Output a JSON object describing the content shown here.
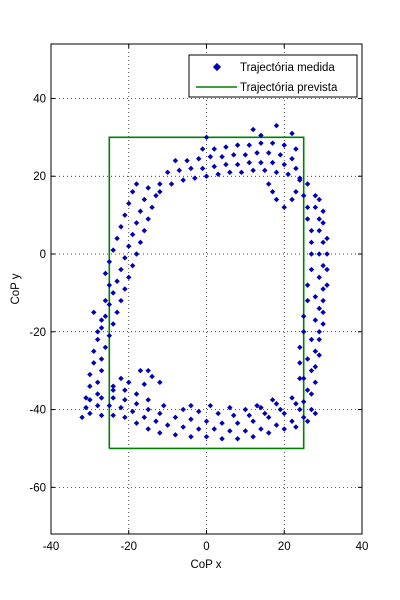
{
  "chart_data": {
    "type": "scatter",
    "xlabel": "CoP x",
    "ylabel": "CoP y",
    "xlim": [
      -40,
      40
    ],
    "ylim": [
      -72,
      54
    ],
    "xticks": [
      -40,
      -20,
      0,
      20,
      40
    ],
    "yticks": [
      -60,
      -40,
      -20,
      0,
      20,
      40
    ],
    "grid": true,
    "legend_position": "top-right",
    "series": [
      {
        "name": "Trajectória medida",
        "style": "markers",
        "color": "#0000b8",
        "marker": "diamond",
        "points": [
          [
            -32.0,
            -42.0
          ],
          [
            -30.0,
            -41.0
          ],
          [
            -27.0,
            -41.5
          ],
          [
            -24.0,
            -41.5
          ],
          [
            -21.0,
            -42.0
          ],
          [
            -18.0,
            -43.5
          ],
          [
            -15.0,
            -45.0
          ],
          [
            -12.0,
            -46.0
          ],
          [
            -8.0,
            -46.5
          ],
          [
            -4.0,
            -47.0
          ],
          [
            0.0,
            -47.0
          ],
          [
            4.0,
            -47.5
          ],
          [
            8.0,
            -47.5
          ],
          [
            12.0,
            -47.0
          ],
          [
            16.0,
            -46.0
          ],
          [
            20.0,
            -45.0
          ],
          [
            23.0,
            -44.5
          ],
          [
            26.0,
            -43.0
          ],
          [
            28.0,
            -41.0
          ],
          [
            -31.0,
            -39.5
          ],
          [
            -28.0,
            -39.0
          ],
          [
            -25.0,
            -39.0
          ],
          [
            -22.0,
            -39.5
          ],
          [
            -19.0,
            -40.5
          ],
          [
            -16.0,
            -42.0
          ],
          [
            -13.0,
            -43.0
          ],
          [
            -10.0,
            -44.0
          ],
          [
            -6.0,
            -44.5
          ],
          [
            -2.0,
            -45.0
          ],
          [
            2.0,
            -45.0
          ],
          [
            6.0,
            -45.5
          ],
          [
            10.0,
            -45.5
          ],
          [
            14.0,
            -45.0
          ],
          [
            18.0,
            -44.0
          ],
          [
            22.0,
            -43.0
          ],
          [
            25.0,
            -42.0
          ],
          [
            27.0,
            -40.0
          ],
          [
            -30.0,
            -37.5
          ],
          [
            -27.0,
            -37.0
          ],
          [
            -24.0,
            -37.0
          ],
          [
            -21.0,
            -37.5
          ],
          [
            -18.0,
            -38.5
          ],
          [
            -15.0,
            -40.0
          ],
          [
            -12.0,
            -41.0
          ],
          [
            -8.0,
            -42.0
          ],
          [
            -4.0,
            -42.5
          ],
          [
            0.0,
            -43.0
          ],
          [
            4.0,
            -43.5
          ],
          [
            8.0,
            -43.5
          ],
          [
            12.0,
            -43.0
          ],
          [
            16.0,
            -42.0
          ],
          [
            20.0,
            -41.0
          ],
          [
            24.0,
            -40.0
          ],
          [
            -28.0,
            -36.0
          ],
          [
            -24.0,
            -35.0
          ],
          [
            -21.0,
            -35.0
          ],
          [
            -18.0,
            -36.0
          ],
          [
            -15.0,
            -37.5
          ],
          [
            -11.0,
            -39.0
          ],
          [
            -6.0,
            -40.0
          ],
          [
            -2.0,
            -40.5
          ],
          [
            3.0,
            -41.0
          ],
          [
            7.0,
            -41.5
          ],
          [
            11.0,
            -41.5
          ],
          [
            15.0,
            -41.0
          ],
          [
            19.0,
            -40.0
          ],
          [
            23.0,
            -38.5
          ],
          [
            -22.0,
            -32.0
          ],
          [
            -20.0,
            -33.0
          ],
          [
            -17.0,
            -30.0
          ],
          [
            -15.0,
            -30.0
          ],
          [
            -14.0,
            -31.5
          ],
          [
            -16.0,
            -33.5
          ],
          [
            -12.0,
            -33.0
          ],
          [
            -24.0,
            -34.0
          ],
          [
            -4.0,
            -39.0
          ],
          [
            1.0,
            -39.0
          ],
          [
            6.0,
            -39.5
          ],
          [
            10.0,
            -40.0
          ],
          [
            14.0,
            -39.5
          ],
          [
            18.0,
            -38.5
          ],
          [
            22.0,
            -37.0
          ],
          [
            13.0,
            -39.0
          ],
          [
            17.0,
            -37.5
          ],
          [
            25.0,
            -38.0
          ],
          [
            26.0,
            -35.0
          ],
          [
            25.0,
            -32.0
          ],
          [
            27.0,
            -30.0
          ],
          [
            26.0,
            -27.0
          ],
          [
            28.0,
            -25.0
          ],
          [
            27.0,
            -22.0
          ],
          [
            29.0,
            -20.0
          ],
          [
            28.0,
            -17.0
          ],
          [
            29.0,
            -14.0
          ],
          [
            28.0,
            -11.0
          ],
          [
            30.0,
            -9.0
          ],
          [
            29.0,
            -6.0
          ],
          [
            30.0,
            -3.0
          ],
          [
            29.0,
            0.0
          ],
          [
            30.0,
            3.0
          ],
          [
            29.0,
            6.0
          ],
          [
            29.0,
            9.0
          ],
          [
            28.0,
            12.0
          ],
          [
            28.0,
            15.0
          ],
          [
            27.0,
            -36.0
          ],
          [
            28.0,
            -33.0
          ],
          [
            28.0,
            -29.0
          ],
          [
            29.0,
            -26.0
          ],
          [
            29.0,
            -22.0
          ],
          [
            30.0,
            -18.0
          ],
          [
            30.0,
            -15.0
          ],
          [
            30.0,
            -12.0
          ],
          [
            31.0,
            -8.0
          ],
          [
            31.0,
            -4.0
          ],
          [
            31.0,
            0.0
          ],
          [
            31.0,
            4.0
          ],
          [
            30.0,
            8.0
          ],
          [
            30.0,
            11.0
          ],
          [
            29.0,
            14.0
          ],
          [
            26.0,
            18.0
          ],
          [
            24.0,
            19.0
          ],
          [
            25.0,
            15.0
          ],
          [
            26.0,
            12.0
          ],
          [
            26.0,
            9.0
          ],
          [
            27.0,
            6.0
          ],
          [
            27.0,
            3.0
          ],
          [
            27.0,
            0.0
          ],
          [
            27.0,
            -4.0
          ],
          [
            26.0,
            -8.0
          ],
          [
            26.0,
            -12.0
          ],
          [
            25.0,
            -16.0
          ],
          [
            25.0,
            -20.0
          ],
          [
            24.0,
            -24.0
          ],
          [
            24.0,
            -28.0
          ],
          [
            24.0,
            -32.0
          ],
          [
            -31.0,
            -37.0
          ],
          [
            -30.0,
            -34.0
          ],
          [
            -30.0,
            -31.0
          ],
          [
            -29.0,
            -28.0
          ],
          [
            -29.0,
            -25.0
          ],
          [
            -28.0,
            -22.0
          ],
          [
            -27.0,
            -19.0
          ],
          [
            -26.0,
            -16.0
          ],
          [
            -25.0,
            -13.0
          ],
          [
            -24.0,
            -10.0
          ],
          [
            -23.0,
            -7.0
          ],
          [
            -22.0,
            -4.0
          ],
          [
            -21.0,
            -1.0
          ],
          [
            -20.0,
            2.0
          ],
          [
            -19.0,
            5.0
          ],
          [
            -18.0,
            8.0
          ],
          [
            -17.0,
            11.0
          ],
          [
            -16.0,
            14.0
          ],
          [
            -15.0,
            17.0
          ],
          [
            -28.0,
            -33.0
          ],
          [
            -27.0,
            -30.0
          ],
          [
            -27.0,
            -27.0
          ],
          [
            -26.0,
            -24.0
          ],
          [
            -25.0,
            -21.0
          ],
          [
            -24.0,
            -18.0
          ],
          [
            -23.0,
            -15.0
          ],
          [
            -22.0,
            -12.0
          ],
          [
            -21.0,
            -9.0
          ],
          [
            -20.0,
            -6.0
          ],
          [
            -19.0,
            -3.0
          ],
          [
            -18.0,
            0.0
          ],
          [
            -17.0,
            3.0
          ],
          [
            -16.0,
            6.0
          ],
          [
            -15.0,
            9.0
          ],
          [
            -14.0,
            12.0
          ],
          [
            -13.0,
            15.0
          ],
          [
            -12.0,
            18.0
          ],
          [
            -26.0,
            -12.0
          ],
          [
            -25.0,
            -8.0
          ],
          [
            -26.0,
            -5.0
          ],
          [
            -25.0,
            -2.0
          ],
          [
            -24.0,
            1.0
          ],
          [
            -23.0,
            4.0
          ],
          [
            -22.0,
            7.0
          ],
          [
            -21.0,
            10.0
          ],
          [
            -20.0,
            13.0
          ],
          [
            -19.0,
            16.0
          ],
          [
            -18.0,
            18.0
          ],
          [
            -29.0,
            -15.0
          ],
          [
            -27.0,
            -17.0
          ],
          [
            -28.0,
            -20.0
          ],
          [
            -12.0,
            16.0
          ],
          [
            -9.0,
            18.0
          ],
          [
            -6.0,
            19.0
          ],
          [
            -3.0,
            19.5
          ],
          [
            0.0,
            20.0
          ],
          [
            3.0,
            20.5
          ],
          [
            6.0,
            21.0
          ],
          [
            9.0,
            21.0
          ],
          [
            12.0,
            21.5
          ],
          [
            15.0,
            21.5
          ],
          [
            18.0,
            21.0
          ],
          [
            21.0,
            20.5
          ],
          [
            24.0,
            19.5
          ],
          [
            -10.0,
            21.0
          ],
          [
            -7.0,
            21.5
          ],
          [
            -4.0,
            22.0
          ],
          [
            -1.0,
            22.0
          ],
          [
            2.0,
            22.5
          ],
          [
            5.0,
            23.0
          ],
          [
            8.0,
            23.0
          ],
          [
            11.0,
            23.5
          ],
          [
            14.0,
            23.5
          ],
          [
            17.0,
            23.5
          ],
          [
            20.0,
            23.0
          ],
          [
            23.0,
            22.0
          ],
          [
            -8.0,
            24.0
          ],
          [
            -5.0,
            24.0
          ],
          [
            -2.0,
            24.5
          ],
          [
            1.0,
            25.0
          ],
          [
            4.0,
            25.0
          ],
          [
            7.0,
            25.5
          ],
          [
            10.0,
            25.5
          ],
          [
            13.0,
            26.0
          ],
          [
            16.0,
            26.0
          ],
          [
            19.0,
            25.5
          ],
          [
            22.0,
            24.5
          ],
          [
            -1.0,
            27.0
          ],
          [
            2.0,
            27.0
          ],
          [
            5.0,
            27.5
          ],
          [
            8.0,
            28.0
          ],
          [
            11.0,
            28.0
          ],
          [
            14.0,
            28.5
          ],
          [
            17.0,
            28.5
          ],
          [
            20.0,
            28.0
          ],
          [
            23.0,
            27.0
          ],
          [
            0.0,
            30.0
          ],
          [
            12.0,
            32.0
          ],
          [
            14.0,
            30.5
          ],
          [
            18.0,
            33.0
          ],
          [
            22.0,
            31.0
          ],
          [
            16.0,
            18.0
          ],
          [
            17.0,
            16.0
          ],
          [
            18.0,
            14.0
          ],
          [
            20.0,
            12.0
          ],
          [
            22.0,
            14.0
          ],
          [
            23.0,
            16.0
          ]
        ]
      },
      {
        "name": "Trajectória prevista",
        "style": "line",
        "color": "#008000",
        "points": [
          [
            -25.0,
            -50.0
          ],
          [
            25.0,
            -50.0
          ],
          [
            25.0,
            30.0
          ],
          [
            -25.0,
            30.0
          ],
          [
            -25.0,
            -50.0
          ]
        ]
      }
    ]
  }
}
